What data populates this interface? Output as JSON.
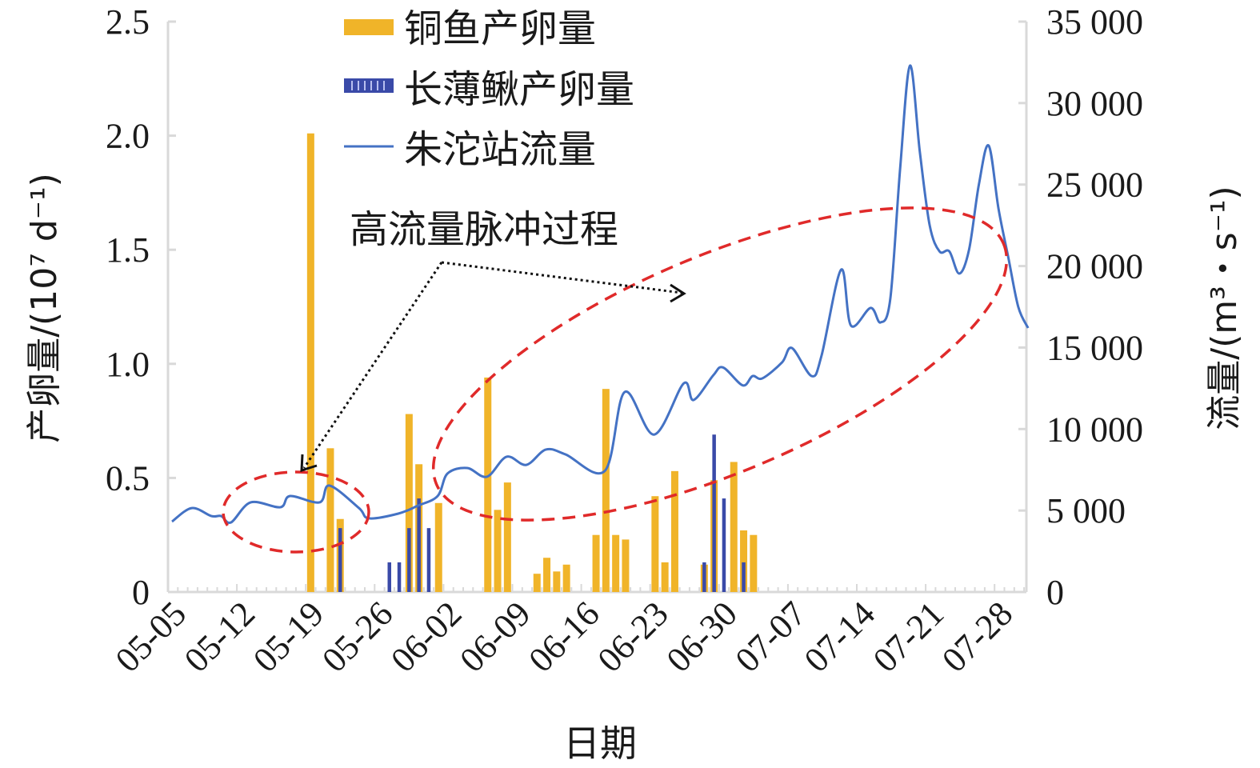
{
  "chart_data": {
    "type": "bar+line",
    "xlabel": "日期",
    "ylabel_left": "产卵量/(10⁷ d⁻¹)",
    "ylabel_right": "流量/(m³・s⁻¹)",
    "ylim_left": [
      0,
      2.5
    ],
    "ylim_right": [
      0,
      35000
    ],
    "yticks_left": [
      "0",
      "0.5",
      "1.0",
      "1.5",
      "2.0",
      "2.5"
    ],
    "yticks_right": [
      "0",
      "5 000",
      "10 000",
      "15 000",
      "20 000",
      "25 000",
      "30 000",
      "35 000"
    ],
    "xticks": [
      "05-05",
      "05-12",
      "05-19",
      "05-26",
      "06-02",
      "06-09",
      "06-16",
      "06-23",
      "06-30",
      "07-07",
      "07-14",
      "07-21",
      "07-28"
    ],
    "x_range": [
      "05-05",
      "07-31"
    ],
    "grid": false,
    "legend_position": "top-center",
    "annotation": "高流量脉冲过程",
    "series": [
      {
        "name": "铜鱼产卵量",
        "type": "bar",
        "axis": "left",
        "color": "#f0b429",
        "x": [
          "05-19",
          "05-21",
          "05-22",
          "05-29",
          "05-30",
          "06-01",
          "06-06",
          "06-07",
          "06-08",
          "06-11",
          "06-12",
          "06-13",
          "06-14",
          "06-17",
          "06-18",
          "06-19",
          "06-20",
          "06-23",
          "06-24",
          "06-25",
          "06-28",
          "06-29",
          "07-01",
          "07-02",
          "07-03"
        ],
        "values": [
          2.01,
          0.63,
          0.32,
          0.78,
          0.56,
          0.39,
          0.94,
          0.36,
          0.48,
          0.08,
          0.15,
          0.09,
          0.12,
          0.25,
          0.89,
          0.25,
          0.23,
          0.42,
          0.13,
          0.53,
          0.12,
          0.49,
          0.57,
          0.27,
          0.25
        ]
      },
      {
        "name": "长薄鳅产卵量",
        "type": "bar",
        "axis": "left",
        "color": "#3a4aa8",
        "x": [
          "05-22",
          "05-27",
          "05-28",
          "05-29",
          "05-30",
          "05-31",
          "06-28",
          "06-29",
          "06-30",
          "07-02"
        ],
        "values": [
          0.28,
          0.13,
          0.13,
          0.28,
          0.41,
          0.28,
          0.13,
          0.69,
          0.41,
          0.13
        ]
      },
      {
        "name": "朱沱站流量",
        "type": "line",
        "axis": "right",
        "color": "#4472c4",
        "x": [
          "05-05",
          "05-07",
          "05-09",
          "05-10",
          "05-11",
          "05-13",
          "05-16",
          "05-17",
          "05-20",
          "05-21",
          "05-24",
          "05-25",
          "05-28",
          "05-30",
          "06-01",
          "06-02",
          "06-04",
          "06-06",
          "06-08",
          "06-10",
          "06-12",
          "06-14",
          "06-18",
          "06-20",
          "06-23",
          "06-26",
          "06-27",
          "06-29",
          "06-30",
          "07-02",
          "07-03",
          "07-04",
          "07-06",
          "07-07",
          "07-09",
          "07-10",
          "07-12",
          "07-13",
          "07-15",
          "07-16",
          "07-17",
          "07-18",
          "07-19",
          "07-20",
          "07-21",
          "07-22",
          "07-23",
          "07-24",
          "07-25",
          "07-26",
          "07-27",
          "07-28",
          "07-29",
          "07-30",
          "07-31"
        ],
        "values": [
          4320,
          5150,
          4660,
          4660,
          4270,
          5500,
          5200,
          5890,
          5500,
          6530,
          5150,
          4520,
          4810,
          5300,
          5890,
          7270,
          7610,
          7070,
          8300,
          7800,
          8740,
          8440,
          7440,
          12270,
          9660,
          12800,
          11780,
          13290,
          13780,
          12680,
          13250,
          13110,
          14090,
          14970,
          13250,
          14480,
          19780,
          16350,
          17430,
          16540,
          18000,
          26000,
          32300,
          27000,
          22500,
          20900,
          20900,
          19540,
          21000,
          25000,
          27390,
          23500,
          20500,
          17500,
          16200
        ]
      }
    ]
  }
}
